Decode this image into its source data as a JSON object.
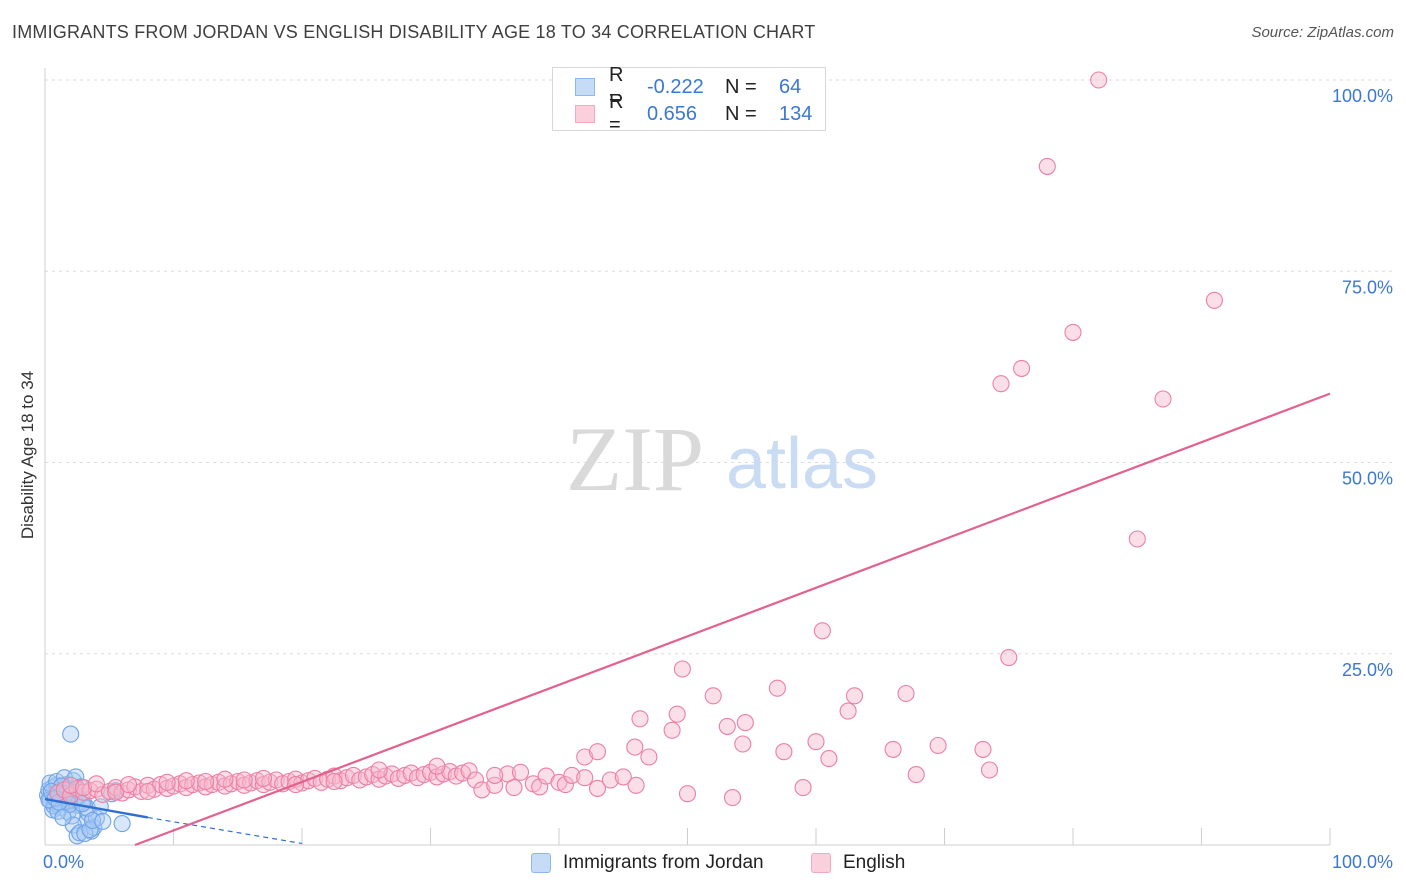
{
  "title": "IMMIGRANTS FROM JORDAN VS ENGLISH DISABILITY AGE 18 TO 34 CORRELATION CHART",
  "source": "Source: ZipAtlas.com",
  "watermark": {
    "zip": "ZIP",
    "atlas": "atlas"
  },
  "legend_top": [
    {
      "r_label": "R =",
      "r_value": "-0.222",
      "n_label": "N =",
      "n_value": "64",
      "color": "#8db8ef"
    },
    {
      "r_label": "R =",
      "r_value": "0.656",
      "n_label": "N =",
      "n_value": "134",
      "color": "#f5a8c0"
    }
  ],
  "legend_bottom": [
    {
      "label": "Immigrants from Jordan",
      "color": "#8db8ef"
    },
    {
      "label": "English",
      "color": "#f5a8c0"
    }
  ],
  "chart_data": {
    "type": "scatter",
    "title": "IMMIGRANTS FROM JORDAN VS ENGLISH DISABILITY AGE 18 TO 34 CORRELATION CHART",
    "xlabel": "",
    "ylabel": "Disability Age 18 to 34",
    "xlim": [
      0,
      100
    ],
    "ylim": [
      0,
      100
    ],
    "x_tick_labels": [
      "0.0%",
      "100.0%"
    ],
    "y_tick_labels": [
      {
        "value": 25,
        "label": "25.0%"
      },
      {
        "value": 50,
        "label": "50.0%"
      },
      {
        "value": 75,
        "label": "75.0%"
      },
      {
        "value": 100,
        "label": "100.0%"
      }
    ],
    "grid": true,
    "series": [
      {
        "name": "Immigrants from Jordan",
        "color": "#6fa3e8",
        "fill": "#a9c9f3",
        "r": -0.222,
        "n": 64,
        "trend": {
          "x": [
            0,
            8
          ],
          "y": [
            6.0,
            3.6
          ],
          "dashed_to": {
            "x": 20,
            "y": 0.2
          }
        },
        "points": [
          [
            0.2,
            6.5
          ],
          [
            0.3,
            7.2
          ],
          [
            0.4,
            5.8
          ],
          [
            0.5,
            6.9
          ],
          [
            0.6,
            7.5
          ],
          [
            0.7,
            6.2
          ],
          [
            0.8,
            5.4
          ],
          [
            0.9,
            7.8
          ],
          [
            1.0,
            6.6
          ],
          [
            1.1,
            7.0
          ],
          [
            1.2,
            5.9
          ],
          [
            1.3,
            6.8
          ],
          [
            1.4,
            7.4
          ],
          [
            1.5,
            6.1
          ],
          [
            1.6,
            5.5
          ],
          [
            1.7,
            7.9
          ],
          [
            1.8,
            6.4
          ],
          [
            1.9,
            7.1
          ],
          [
            2.0,
            5.7
          ],
          [
            2.1,
            6.9
          ],
          [
            2.2,
            8.4
          ],
          [
            2.3,
            6.0
          ],
          [
            2.4,
            7.3
          ],
          [
            2.5,
            5.2
          ],
          [
            0.4,
            8.1
          ],
          [
            0.6,
            4.6
          ],
          [
            0.9,
            8.3
          ],
          [
            1.2,
            4.9
          ],
          [
            1.5,
            8.8
          ],
          [
            1.8,
            4.3
          ],
          [
            2.1,
            3.8
          ],
          [
            2.4,
            8.9
          ],
          [
            2.6,
            6.3
          ],
          [
            2.8,
            7.6
          ],
          [
            3.0,
            5.6
          ],
          [
            3.2,
            2.9
          ],
          [
            3.4,
            4.1
          ],
          [
            3.6,
            1.8
          ],
          [
            3.8,
            2.3
          ],
          [
            4.0,
            3.5
          ],
          [
            0.7,
            5.1
          ],
          [
            1.0,
            4.4
          ],
          [
            1.3,
            7.7
          ],
          [
            1.6,
            6.7
          ],
          [
            1.9,
            5.3
          ],
          [
            2.2,
            2.6
          ],
          [
            2.5,
            1.2
          ],
          [
            2.7,
            1.6
          ],
          [
            3.1,
            1.5
          ],
          [
            3.3,
            4.8
          ],
          [
            3.5,
            2.0
          ],
          [
            3.7,
            3.2
          ],
          [
            4.3,
            5.0
          ],
          [
            4.5,
            3.1
          ],
          [
            5.2,
            6.7
          ],
          [
            5.5,
            7.1
          ],
          [
            0.3,
            5.9
          ],
          [
            0.5,
            7.0
          ],
          [
            0.8,
            6.1
          ],
          [
            1.1,
            5.6
          ],
          [
            2.0,
            14.5
          ],
          [
            6.0,
            2.8
          ],
          [
            2.9,
            5.4
          ],
          [
            1.4,
            3.6
          ]
        ]
      },
      {
        "name": "English",
        "color": "#ec7fa3",
        "fill": "#f6b9cc",
        "r": 0.656,
        "n": 134,
        "trend": {
          "x": [
            7,
            100
          ],
          "y": [
            0,
            59
          ]
        },
        "points": [
          [
            1.0,
            6.8
          ],
          [
            1.5,
            7.2
          ],
          [
            2.0,
            6.5
          ],
          [
            2.5,
            7.4
          ],
          [
            3.0,
            6.9
          ],
          [
            3.5,
            7.1
          ],
          [
            4.0,
            7.3
          ],
          [
            4.5,
            6.6
          ],
          [
            5.0,
            7.0
          ],
          [
            5.5,
            7.5
          ],
          [
            6.0,
            6.8
          ],
          [
            6.5,
            7.2
          ],
          [
            7.0,
            7.6
          ],
          [
            7.5,
            7.0
          ],
          [
            8.0,
            7.8
          ],
          [
            8.5,
            7.3
          ],
          [
            9.0,
            7.9
          ],
          [
            9.5,
            7.4
          ],
          [
            10.0,
            7.7
          ],
          [
            10.5,
            8.0
          ],
          [
            11.0,
            7.5
          ],
          [
            11.5,
            7.9
          ],
          [
            12.0,
            8.1
          ],
          [
            12.5,
            7.6
          ],
          [
            13.0,
            7.9
          ],
          [
            13.5,
            8.2
          ],
          [
            14.0,
            7.7
          ],
          [
            14.5,
            8.0
          ],
          [
            15.0,
            8.3
          ],
          [
            15.5,
            7.8
          ],
          [
            16.0,
            8.1
          ],
          [
            16.5,
            8.4
          ],
          [
            17.0,
            7.9
          ],
          [
            17.5,
            8.2
          ],
          [
            18.0,
            8.5
          ],
          [
            18.5,
            8.0
          ],
          [
            19.0,
            8.3
          ],
          [
            19.5,
            8.6
          ],
          [
            20.0,
            8.1
          ],
          [
            20.5,
            8.4
          ],
          [
            21.0,
            8.7
          ],
          [
            21.5,
            8.2
          ],
          [
            22.0,
            8.6
          ],
          [
            22.5,
            9.0
          ],
          [
            23.0,
            8.4
          ],
          [
            23.5,
            8.8
          ],
          [
            24.0,
            9.1
          ],
          [
            24.5,
            8.5
          ],
          [
            25.0,
            8.9
          ],
          [
            25.5,
            9.2
          ],
          [
            26.0,
            8.6
          ],
          [
            26.5,
            9.0
          ],
          [
            27.0,
            9.3
          ],
          [
            27.5,
            8.7
          ],
          [
            28.0,
            9.1
          ],
          [
            28.5,
            9.4
          ],
          [
            29.0,
            8.8
          ],
          [
            29.5,
            9.2
          ],
          [
            30.0,
            9.5
          ],
          [
            30.5,
            8.9
          ],
          [
            31.0,
            9.3
          ],
          [
            31.5,
            9.6
          ],
          [
            32.0,
            9.0
          ],
          [
            32.5,
            9.4
          ],
          [
            33.0,
            9.7
          ],
          [
            33.5,
            8.5
          ],
          [
            34.0,
            7.2
          ],
          [
            35.0,
            7.8
          ],
          [
            36.0,
            9.3
          ],
          [
            36.5,
            7.5
          ],
          [
            37.0,
            9.5
          ],
          [
            38.0,
            8.0
          ],
          [
            38.5,
            7.6
          ],
          [
            39.0,
            9.0
          ],
          [
            40.0,
            8.2
          ],
          [
            40.5,
            7.9
          ],
          [
            41.0,
            9.1
          ],
          [
            42.0,
            8.8
          ],
          [
            43.0,
            7.4
          ],
          [
            44.0,
            8.5
          ],
          [
            45.0,
            8.9
          ],
          [
            46.0,
            7.8
          ],
          [
            2.0,
            7.8
          ],
          [
            3.0,
            7.5
          ],
          [
            4.0,
            8.0
          ],
          [
            5.5,
            6.9
          ],
          [
            6.5,
            7.9
          ],
          [
            8.0,
            7.0
          ],
          [
            9.5,
            8.2
          ],
          [
            11.0,
            8.4
          ],
          [
            12.5,
            8.3
          ],
          [
            14.0,
            8.6
          ],
          [
            15.5,
            8.5
          ],
          [
            17.0,
            8.7
          ],
          [
            19.5,
            7.9
          ],
          [
            22.5,
            8.3
          ],
          [
            26.0,
            9.8
          ],
          [
            30.5,
            10.3
          ],
          [
            35.0,
            9.1
          ],
          [
            46.3,
            16.5
          ],
          [
            49.2,
            17.1
          ],
          [
            45.9,
            12.8
          ],
          [
            48.8,
            15.0
          ],
          [
            52.0,
            19.5
          ],
          [
            54.5,
            16.0
          ],
          [
            57.0,
            20.5
          ],
          [
            60.0,
            13.5
          ],
          [
            61.0,
            11.3
          ],
          [
            63.0,
            19.5
          ],
          [
            67.0,
            19.8
          ],
          [
            66.0,
            12.5
          ],
          [
            57.5,
            12.2
          ],
          [
            53.5,
            6.2
          ],
          [
            60.5,
            28.0
          ],
          [
            54.3,
            13.2
          ],
          [
            53.1,
            15.5
          ],
          [
            50.0,
            6.7
          ],
          [
            47.0,
            11.5
          ],
          [
            42.0,
            11.5
          ],
          [
            43.0,
            12.2
          ],
          [
            49.6,
            23.0
          ],
          [
            59.0,
            7.5
          ],
          [
            62.5,
            17.5
          ],
          [
            67.8,
            9.2
          ],
          [
            69.5,
            13.0
          ],
          [
            73.0,
            12.5
          ],
          [
            73.5,
            9.8
          ],
          [
            75.0,
            24.5
          ],
          [
            74.4,
            60.3
          ],
          [
            76.0,
            62.3
          ],
          [
            78.0,
            88.7
          ],
          [
            80.0,
            67.0
          ],
          [
            82.0,
            100.0
          ],
          [
            85.0,
            40.0
          ],
          [
            87.0,
            58.3
          ],
          [
            91.0,
            71.2
          ]
        ]
      }
    ]
  }
}
